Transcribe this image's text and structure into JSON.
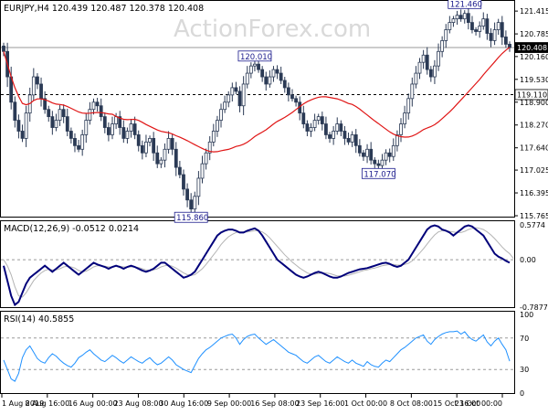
{
  "header": {
    "symbol_line": "EURJPY,H4  120.439 120.487 120.378 120.408"
  },
  "watermark": "ActionForex.com",
  "colors": {
    "candle": "#2b3a55",
    "ma": "#e01515",
    "macd_main": "#00007a",
    "macd_signal": "#b4b4b4",
    "rsi": "#1e90ff",
    "grid_dash": "#9a9a9a",
    "tag_border": "#1a1a8c"
  },
  "chart_data": [
    {
      "type": "candlestick",
      "panel": "price",
      "ylim": [
        115.765,
        121.62
      ],
      "y_ticks": [
        "121.415",
        "120.785",
        "120.160",
        "119.530",
        "118.900",
        "118.270",
        "117.640",
        "117.025",
        "116.395",
        "115.765"
      ],
      "current_price": "120.408",
      "level_line": "119.110",
      "annotations": [
        {
          "label": "121.460",
          "value": 121.46,
          "index": 123
        },
        {
          "label": "120.010",
          "value": 120.01,
          "index": 67
        },
        {
          "label": "117.070",
          "value": 117.07,
          "index": 100
        },
        {
          "label": "115.860",
          "value": 115.86,
          "index": 50
        }
      ],
      "close": [
        120.3,
        119.6,
        118.9,
        118.4,
        118.1,
        117.9,
        118.6,
        119.1,
        119.6,
        119.4,
        119.0,
        118.7,
        118.5,
        118.2,
        118.4,
        118.7,
        118.5,
        118.1,
        117.9,
        117.7,
        117.6,
        118.0,
        118.4,
        118.7,
        118.9,
        118.8,
        118.5,
        118.2,
        118.0,
        118.3,
        118.5,
        118.2,
        117.9,
        118.1,
        118.3,
        118.0,
        117.7,
        117.5,
        117.8,
        117.9,
        117.5,
        117.2,
        117.3,
        117.6,
        117.9,
        117.6,
        117.1,
        116.9,
        116.5,
        116.2,
        115.95,
        116.3,
        116.8,
        117.2,
        117.5,
        117.8,
        118.1,
        118.4,
        118.7,
        118.9,
        119.1,
        119.3,
        119.2,
        118.8,
        119.4,
        119.7,
        119.9,
        119.95,
        119.8,
        119.6,
        119.4,
        119.6,
        119.8,
        119.7,
        119.5,
        119.3,
        119.1,
        119.0,
        118.9,
        118.6,
        118.3,
        118.1,
        118.2,
        118.4,
        118.5,
        118.3,
        118.0,
        117.9,
        118.1,
        118.3,
        118.1,
        117.9,
        117.8,
        118.0,
        117.7,
        117.5,
        117.4,
        117.6,
        117.3,
        117.2,
        117.15,
        117.3,
        117.5,
        117.4,
        117.7,
        118.0,
        118.3,
        118.6,
        119.0,
        119.4,
        119.7,
        120.0,
        120.2,
        119.8,
        119.6,
        119.9,
        120.3,
        120.6,
        120.9,
        121.1,
        121.2,
        121.3,
        121.2,
        121.35,
        121.1,
        120.9,
        120.85,
        121.0,
        121.2,
        120.8,
        120.6,
        120.9,
        121.1,
        120.7,
        120.5,
        120.408
      ],
      "ma_period": 30
    },
    {
      "type": "line",
      "panel": "macd",
      "title": "MACD(12,26,9) -0.0512 0.0214",
      "ylim": [
        -0.7877,
        0.5774
      ],
      "y_ticks": [
        "0.5774",
        "0.00",
        "-0.7877"
      ],
      "series": [
        {
          "name": "MACD",
          "values": [
            -0.1,
            -0.35,
            -0.6,
            -0.75,
            -0.7,
            -0.55,
            -0.4,
            -0.3,
            -0.25,
            -0.2,
            -0.15,
            -0.1,
            -0.15,
            -0.2,
            -0.15,
            -0.1,
            -0.05,
            -0.1,
            -0.15,
            -0.2,
            -0.25,
            -0.2,
            -0.15,
            -0.1,
            -0.05,
            -0.08,
            -0.1,
            -0.12,
            -0.15,
            -0.12,
            -0.1,
            -0.12,
            -0.15,
            -0.12,
            -0.1,
            -0.12,
            -0.15,
            -0.18,
            -0.2,
            -0.18,
            -0.15,
            -0.1,
            -0.05,
            -0.05,
            -0.1,
            -0.15,
            -0.2,
            -0.25,
            -0.3,
            -0.28,
            -0.25,
            -0.2,
            -0.1,
            0.0,
            0.1,
            0.2,
            0.3,
            0.4,
            0.45,
            0.48,
            0.5,
            0.5,
            0.48,
            0.45,
            0.45,
            0.48,
            0.5,
            0.52,
            0.48,
            0.4,
            0.3,
            0.2,
            0.1,
            0.0,
            -0.05,
            -0.1,
            -0.15,
            -0.2,
            -0.25,
            -0.28,
            -0.3,
            -0.28,
            -0.25,
            -0.22,
            -0.2,
            -0.22,
            -0.25,
            -0.28,
            -0.3,
            -0.3,
            -0.28,
            -0.25,
            -0.22,
            -0.2,
            -0.18,
            -0.16,
            -0.15,
            -0.14,
            -0.12,
            -0.1,
            -0.08,
            -0.06,
            -0.05,
            -0.07,
            -0.1,
            -0.12,
            -0.1,
            -0.05,
            0.0,
            0.1,
            0.2,
            0.3,
            0.4,
            0.5,
            0.55,
            0.57,
            0.55,
            0.5,
            0.48,
            0.45,
            0.4,
            0.45,
            0.5,
            0.55,
            0.57,
            0.55,
            0.5,
            0.45,
            0.4,
            0.3,
            0.2,
            0.1,
            0.05,
            0.02,
            -0.02,
            -0.0512
          ]
        },
        {
          "name": "Signal",
          "values": [
            0.0,
            -0.1,
            -0.25,
            -0.45,
            -0.6,
            -0.62,
            -0.55,
            -0.45,
            -0.35,
            -0.28,
            -0.22,
            -0.18,
            -0.16,
            -0.17,
            -0.17,
            -0.15,
            -0.12,
            -0.11,
            -0.12,
            -0.14,
            -0.18,
            -0.2,
            -0.19,
            -0.16,
            -0.12,
            -0.1,
            -0.1,
            -0.11,
            -0.12,
            -0.12,
            -0.11,
            -0.11,
            -0.12,
            -0.12,
            -0.12,
            -0.12,
            -0.13,
            -0.15,
            -0.17,
            -0.18,
            -0.17,
            -0.15,
            -0.12,
            -0.1,
            -0.09,
            -0.11,
            -0.14,
            -0.18,
            -0.22,
            -0.25,
            -0.26,
            -0.25,
            -0.2,
            -0.15,
            -0.08,
            0.0,
            0.08,
            0.16,
            0.25,
            0.32,
            0.38,
            0.42,
            0.45,
            0.46,
            0.46,
            0.46,
            0.47,
            0.48,
            0.48,
            0.46,
            0.42,
            0.36,
            0.29,
            0.22,
            0.15,
            0.08,
            0.02,
            -0.04,
            -0.09,
            -0.14,
            -0.18,
            -0.22,
            -0.24,
            -0.24,
            -0.23,
            -0.22,
            -0.22,
            -0.23,
            -0.25,
            -0.27,
            -0.27,
            -0.27,
            -0.26,
            -0.24,
            -0.22,
            -0.2,
            -0.18,
            -0.17,
            -0.15,
            -0.14,
            -0.12,
            -0.1,
            -0.09,
            -0.08,
            -0.08,
            -0.09,
            -0.09,
            -0.08,
            -0.06,
            -0.02,
            0.04,
            0.11,
            0.18,
            0.26,
            0.34,
            0.41,
            0.46,
            0.48,
            0.48,
            0.47,
            0.46,
            0.45,
            0.45,
            0.47,
            0.5,
            0.52,
            0.53,
            0.52,
            0.5,
            0.46,
            0.41,
            0.35,
            0.28,
            0.21,
            0.15,
            0.1,
            0.0214
          ]
        }
      ]
    },
    {
      "type": "line",
      "panel": "rsi",
      "title": "RSI(14) 40.5855",
      "ylim": [
        0,
        100
      ],
      "y_ticks": [
        "100",
        "70",
        "30",
        "0"
      ],
      "levels": [
        70,
        30
      ],
      "series": [
        {
          "name": "RSI",
          "values": [
            42,
            30,
            18,
            15,
            25,
            45,
            55,
            60,
            52,
            44,
            40,
            38,
            45,
            50,
            47,
            42,
            38,
            35,
            33,
            38,
            45,
            48,
            52,
            55,
            50,
            46,
            42,
            40,
            44,
            48,
            45,
            41,
            38,
            42,
            46,
            43,
            40,
            38,
            42,
            45,
            40,
            36,
            38,
            42,
            46,
            42,
            36,
            33,
            30,
            28,
            26,
            35,
            44,
            50,
            55,
            58,
            62,
            66,
            70,
            72,
            74,
            75,
            70,
            62,
            68,
            72,
            74,
            75,
            70,
            66,
            62,
            65,
            68,
            64,
            60,
            56,
            52,
            50,
            48,
            44,
            40,
            38,
            42,
            46,
            48,
            44,
            40,
            38,
            42,
            46,
            43,
            40,
            38,
            42,
            38,
            36,
            34,
            40,
            36,
            34,
            33,
            38,
            42,
            40,
            45,
            50,
            55,
            58,
            62,
            66,
            70,
            72,
            74,
            66,
            62,
            68,
            72,
            75,
            77,
            78,
            78,
            79,
            75,
            78,
            72,
            68,
            66,
            70,
            74,
            65,
            60,
            66,
            70,
            62,
            55,
            40.5855
          ]
        }
      ]
    }
  ],
  "x_axis": {
    "labels": [
      "1 Aug 2019",
      "8 Aug 16:00",
      "16 Aug 00:00",
      "23 Aug 08:00",
      "30 Aug 16:00",
      "9 Sep 00:00",
      "16 Sep 08:00",
      "23 Sep 16:00",
      "1 Oct 00:00",
      "8 Oct 08:00",
      "15 Oct 16:00",
      "23 Oct 00:00"
    ]
  }
}
